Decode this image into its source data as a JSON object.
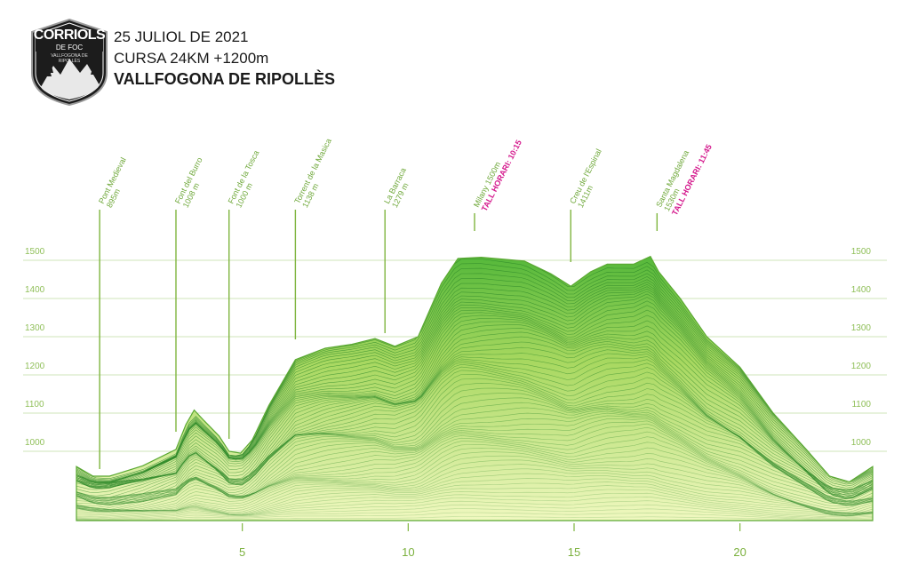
{
  "logo": {
    "line1": "CORRIOLS",
    "line2": "DE FOC",
    "arc": "VALLFOGONA DE RIPOLLÈS"
  },
  "header": {
    "date": "25 JULIOL DE 2021",
    "race": "CURSA 24KM +1200m",
    "place": "VALLFOGONA DE RIPOLLÈS"
  },
  "colors": {
    "grid": "#cfe4b8",
    "axis_label": "#8fbf58",
    "marker_line": "#7fb53f",
    "marker_text": "#6fa83a",
    "cutoff": "#d4188c",
    "fill_light": "#f0f8c0",
    "fill_dark": "#55b83a",
    "contour": "#2f8a2a"
  },
  "chart_data": {
    "type": "area",
    "title": "",
    "xlabel": "",
    "ylabel": "",
    "xlim": [
      0,
      24
    ],
    "ylim": [
      800,
      1520
    ],
    "grid": true,
    "x_ticks": [
      "5",
      "10",
      "15",
      "20"
    ],
    "x_tick_values": [
      5,
      10,
      15,
      20
    ],
    "y_ticks": [
      "1000",
      "1100",
      "1200",
      "1300",
      "1400",
      "1500"
    ],
    "y_tick_values": [
      1000,
      1100,
      1200,
      1300,
      1400,
      1500
    ],
    "elevation_profile": [
      {
        "x": 0,
        "y": 960
      },
      {
        "x": 0.5,
        "y": 935
      },
      {
        "x": 1,
        "y": 935
      },
      {
        "x": 2,
        "y": 962
      },
      {
        "x": 3,
        "y": 1005
      },
      {
        "x": 3.3,
        "y": 1070
      },
      {
        "x": 3.55,
        "y": 1108
      },
      {
        "x": 3.85,
        "y": 1080
      },
      {
        "x": 4.3,
        "y": 1040
      },
      {
        "x": 4.6,
        "y": 1000
      },
      {
        "x": 4.95,
        "y": 995
      },
      {
        "x": 5.3,
        "y": 1030
      },
      {
        "x": 5.8,
        "y": 1120
      },
      {
        "x": 6.6,
        "y": 1240
      },
      {
        "x": 7.5,
        "y": 1270
      },
      {
        "x": 8.3,
        "y": 1280
      },
      {
        "x": 9.0,
        "y": 1295
      },
      {
        "x": 9.6,
        "y": 1275
      },
      {
        "x": 10.3,
        "y": 1300
      },
      {
        "x": 11.0,
        "y": 1440
      },
      {
        "x": 11.5,
        "y": 1505
      },
      {
        "x": 12.2,
        "y": 1508
      },
      {
        "x": 13.5,
        "y": 1498
      },
      {
        "x": 14.3,
        "y": 1465
      },
      {
        "x": 14.9,
        "y": 1432
      },
      {
        "x": 15.5,
        "y": 1470
      },
      {
        "x": 16.0,
        "y": 1490
      },
      {
        "x": 16.8,
        "y": 1490
      },
      {
        "x": 17.3,
        "y": 1510
      },
      {
        "x": 17.55,
        "y": 1470
      },
      {
        "x": 18.2,
        "y": 1400
      },
      {
        "x": 19.0,
        "y": 1300
      },
      {
        "x": 20.0,
        "y": 1220
      },
      {
        "x": 21.0,
        "y": 1100
      },
      {
        "x": 22.0,
        "y": 1005
      },
      {
        "x": 22.7,
        "y": 935
      },
      {
        "x": 23.3,
        "y": 920
      },
      {
        "x": 24.0,
        "y": 960
      }
    ],
    "waypoints": [
      {
        "name": "Pont Medieval",
        "elev": "895m",
        "x": 0.7,
        "cutoff": ""
      },
      {
        "name": "Font del Burro",
        "elev": "1008 m",
        "x": 3.0,
        "cutoff": ""
      },
      {
        "name": "Font de la Tosca",
        "elev": "1000 m",
        "x": 4.6,
        "cutoff": ""
      },
      {
        "name": "Torrent de la Masica",
        "elev": "1138 m",
        "x": 6.6,
        "cutoff": ""
      },
      {
        "name": "La Barraca",
        "elev": "1279 m",
        "x": 9.3,
        "cutoff": ""
      },
      {
        "name": "Milany 1500m",
        "elev": "",
        "x": 12.0,
        "cutoff": "TALL HORARI: 10:15"
      },
      {
        "name": "Creu de l'Espinal",
        "elev": "1411m",
        "x": 14.9,
        "cutoff": ""
      },
      {
        "name": "Santa Magdalena",
        "elev": "1530m",
        "x": 17.5,
        "cutoff": "TALL HORARI: 11:45"
      }
    ]
  }
}
